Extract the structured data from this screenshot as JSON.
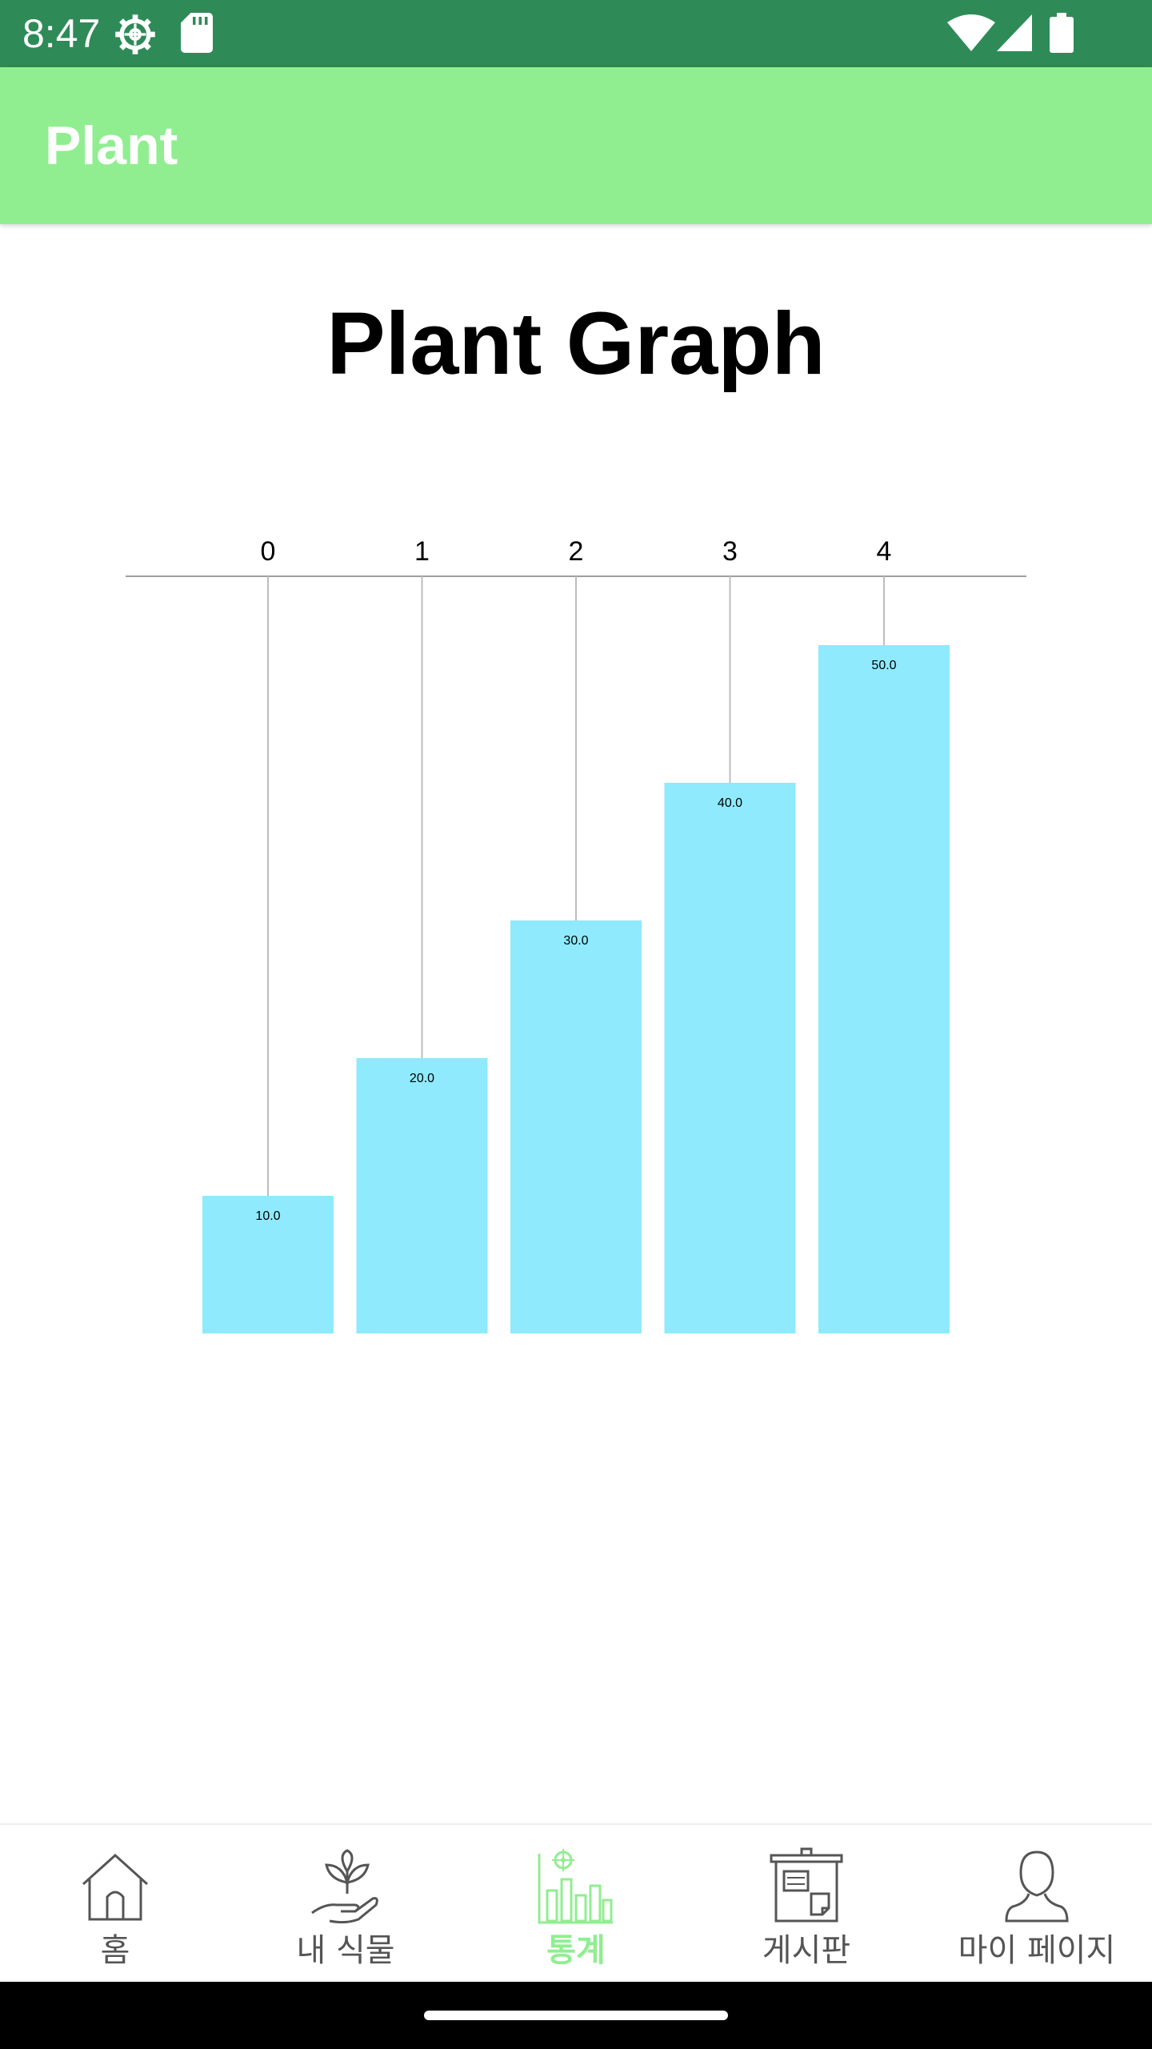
{
  "status": {
    "time": "8:47",
    "icons": [
      "settings-icon",
      "sd-card-icon",
      "wifi-icon",
      "signal-icon",
      "battery-icon"
    ]
  },
  "app_bar": {
    "title": "Plant",
    "color": "#90ee90"
  },
  "page": {
    "title": "Plant Graph"
  },
  "chart_data": {
    "type": "bar",
    "categories": [
      "0",
      "1",
      "2",
      "3",
      "4"
    ],
    "values": [
      10.0,
      20.0,
      30.0,
      40.0,
      50.0
    ],
    "value_labels": [
      "10.0",
      "20.0",
      "30.0",
      "40.0",
      "50.0"
    ],
    "ylim": [
      0,
      55
    ],
    "bar_color": "#8eeafc",
    "x_axis_position": "top",
    "grid": true
  },
  "bottom_nav": {
    "items": [
      {
        "label": "홈",
        "icon": "home-icon",
        "active": false
      },
      {
        "label": "내 식물",
        "icon": "plant-in-hand-icon",
        "active": false
      },
      {
        "label": "통계",
        "icon": "statistics-chart-icon",
        "active": true
      },
      {
        "label": "게시판",
        "icon": "bulletin-board-icon",
        "active": false
      },
      {
        "label": "마이 페이지",
        "icon": "user-profile-icon",
        "active": false
      }
    ],
    "active_color": "#90ee90",
    "inactive_color": "#555555"
  }
}
